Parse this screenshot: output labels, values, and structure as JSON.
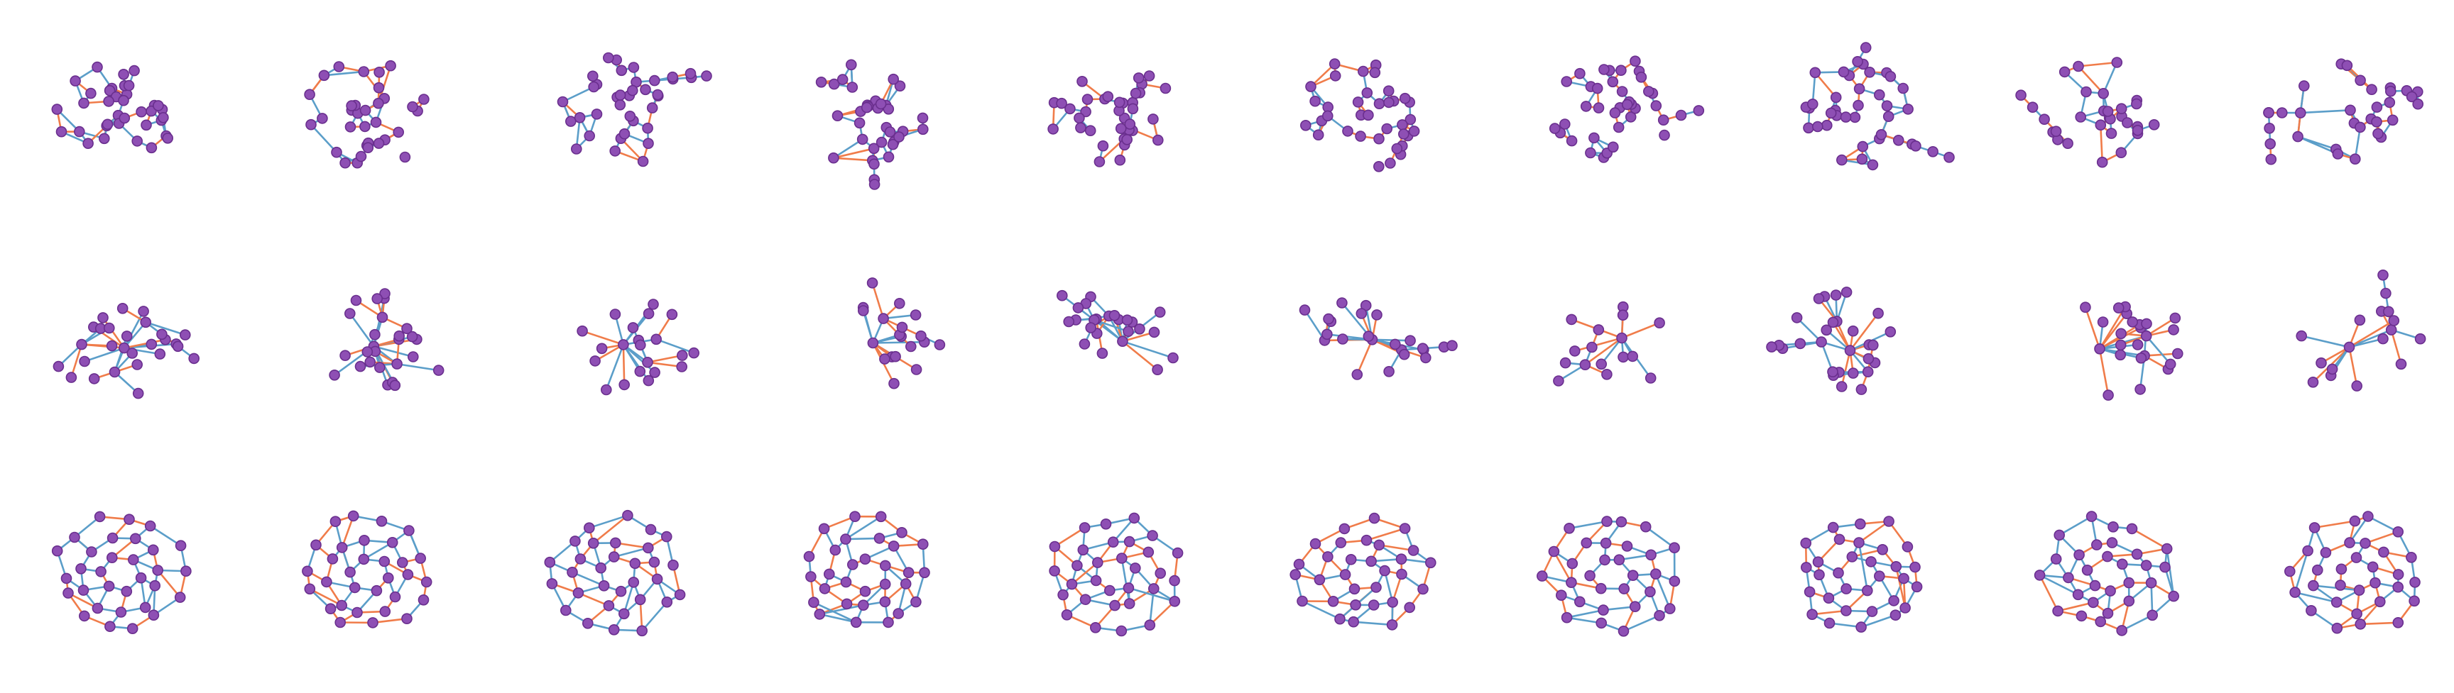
{
  "figure": {
    "rows": 3,
    "columns": 10,
    "background": "#ffffff",
    "colors": {
      "node_fill": "#8e4fb4",
      "node_stroke": "#6a2f8e",
      "edge_blue": "#5b9ec9",
      "edge_orange": "#f07c4a"
    },
    "row_styles": [
      "dense-irregular",
      "hub-and-spoke-tree",
      "ring-like-mesh"
    ]
  }
}
